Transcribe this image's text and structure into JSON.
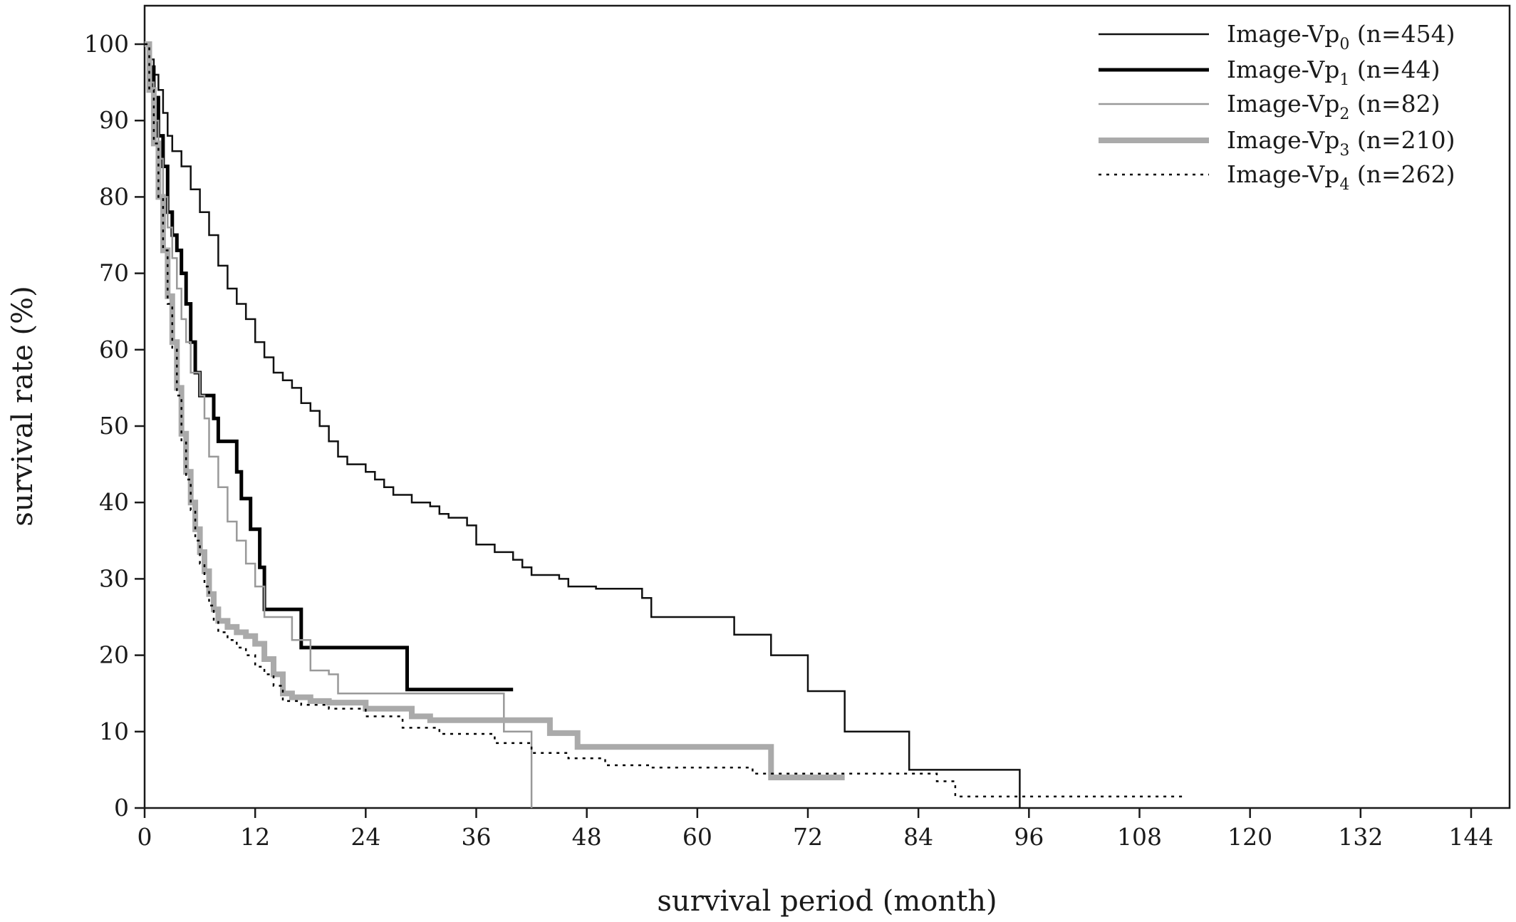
{
  "chart_data": {
    "type": "line",
    "step": true,
    "title": "",
    "xlabel": "survival period (month)",
    "ylabel": "survival rate (%)",
    "xlim": [
      0,
      150
    ],
    "ylim": [
      0,
      105
    ],
    "xticks": [
      0,
      12,
      24,
      36,
      48,
      60,
      72,
      84,
      96,
      108,
      120,
      132,
      144
    ],
    "yticks": [
      0,
      10,
      20,
      30,
      40,
      50,
      60,
      70,
      80,
      90,
      100
    ],
    "grid": false,
    "legend_position": "top-right",
    "series": [
      {
        "name_prefix": "Image-Vp",
        "name_sub": "0",
        "name_suffix": " (n=454)",
        "color": "#111111",
        "line_width": 2.5,
        "dash": "",
        "points": [
          [
            0,
            100
          ],
          [
            0.5,
            98
          ],
          [
            1,
            96
          ],
          [
            1.5,
            94
          ],
          [
            2,
            91
          ],
          [
            2.5,
            88
          ],
          [
            3,
            86
          ],
          [
            4,
            84
          ],
          [
            5,
            81
          ],
          [
            6,
            78
          ],
          [
            7,
            75
          ],
          [
            8,
            71
          ],
          [
            9,
            68
          ],
          [
            10,
            66
          ],
          [
            11,
            64
          ],
          [
            12,
            61
          ],
          [
            13,
            59
          ],
          [
            14,
            57
          ],
          [
            15,
            56
          ],
          [
            16,
            55
          ],
          [
            17,
            53
          ],
          [
            18,
            52
          ],
          [
            19,
            50
          ],
          [
            20,
            48
          ],
          [
            21,
            46
          ],
          [
            22,
            45
          ],
          [
            24,
            44
          ],
          [
            25,
            43
          ],
          [
            26,
            42
          ],
          [
            27,
            41
          ],
          [
            29,
            40
          ],
          [
            31,
            39.5
          ],
          [
            32,
            38.5
          ],
          [
            33,
            38
          ],
          [
            35,
            37
          ],
          [
            36,
            34.5
          ],
          [
            38,
            33.5
          ],
          [
            40,
            32.5
          ],
          [
            41,
            31.5
          ],
          [
            42,
            30.5
          ],
          [
            45,
            30
          ],
          [
            46,
            29
          ],
          [
            49,
            28.7
          ],
          [
            54,
            27.5
          ],
          [
            55,
            25
          ],
          [
            64,
            22.7
          ],
          [
            68,
            20
          ],
          [
            72,
            15.3
          ],
          [
            76,
            10
          ],
          [
            83,
            5
          ],
          [
            95,
            0
          ]
        ]
      },
      {
        "name_prefix": "Image-Vp",
        "name_sub": "1",
        "name_suffix": " (n=44)",
        "color": "#000000",
        "line_width": 5,
        "dash": "",
        "points": [
          [
            0,
            100
          ],
          [
            0.5,
            97
          ],
          [
            1,
            93
          ],
          [
            1.5,
            88
          ],
          [
            2,
            84
          ],
          [
            2.5,
            78
          ],
          [
            3,
            75
          ],
          [
            3.5,
            73
          ],
          [
            4,
            70
          ],
          [
            4.5,
            66
          ],
          [
            5,
            61
          ],
          [
            5.5,
            57
          ],
          [
            6,
            54
          ],
          [
            7,
            54
          ],
          [
            7.5,
            51
          ],
          [
            8,
            48
          ],
          [
            10,
            44
          ],
          [
            10.5,
            40.5
          ],
          [
            11.5,
            36.5
          ],
          [
            12.5,
            31.5
          ],
          [
            13,
            26
          ],
          [
            17,
            21
          ],
          [
            28.5,
            15.5
          ],
          [
            40,
            15.5
          ]
        ]
      },
      {
        "name_prefix": "Image-Vp",
        "name_sub": "2",
        "name_suffix": " (n=82)",
        "color": "#999999",
        "line_width": 2.5,
        "dash": "",
        "points": [
          [
            0,
            100
          ],
          [
            0.5,
            95
          ],
          [
            1,
            90
          ],
          [
            1.5,
            85
          ],
          [
            2,
            80
          ],
          [
            2.5,
            76
          ],
          [
            3,
            72
          ],
          [
            3.5,
            68
          ],
          [
            4,
            64
          ],
          [
            4.5,
            61
          ],
          [
            5,
            57
          ],
          [
            6,
            54
          ],
          [
            6.5,
            51
          ],
          [
            7,
            46
          ],
          [
            8,
            42
          ],
          [
            9,
            37.5
          ],
          [
            10,
            35
          ],
          [
            11,
            32
          ],
          [
            12,
            29
          ],
          [
            13,
            25
          ],
          [
            16,
            22
          ],
          [
            18,
            18
          ],
          [
            20,
            17.5
          ],
          [
            21,
            15
          ],
          [
            39,
            10
          ],
          [
            42,
            0
          ]
        ]
      },
      {
        "name_prefix": "Image-Vp",
        "name_sub": "3",
        "name_suffix": " (n=210)",
        "color": "#aaaaaa",
        "line_width": 8,
        "dash": "",
        "points": [
          [
            0,
            100
          ],
          [
            0.5,
            94
          ],
          [
            1,
            87
          ],
          [
            1.5,
            80
          ],
          [
            2,
            73
          ],
          [
            2.5,
            67
          ],
          [
            3,
            61
          ],
          [
            3.5,
            55
          ],
          [
            4,
            49
          ],
          [
            4.5,
            44
          ],
          [
            5,
            40
          ],
          [
            5.5,
            36.5
          ],
          [
            6,
            33.5
          ],
          [
            6.5,
            31
          ],
          [
            7,
            28
          ],
          [
            7.5,
            26
          ],
          [
            8,
            24.5
          ],
          [
            9,
            23.7
          ],
          [
            10,
            23
          ],
          [
            11,
            22.5
          ],
          [
            12,
            21.5
          ],
          [
            13,
            19.5
          ],
          [
            14,
            17.5
          ],
          [
            15,
            15
          ],
          [
            16,
            14.5
          ],
          [
            18,
            14
          ],
          [
            20,
            13.8
          ],
          [
            24,
            13
          ],
          [
            29,
            12
          ],
          [
            31,
            11.5
          ],
          [
            44,
            9.8
          ],
          [
            47,
            8
          ],
          [
            68,
            4
          ],
          [
            76,
            4
          ]
        ]
      },
      {
        "name_prefix": "Image-Vp",
        "name_sub": "4",
        "name_suffix": " (n=262)",
        "color": "#000000",
        "line_width": 2.5,
        "dash": "4 7",
        "points": [
          [
            0,
            100
          ],
          [
            0.5,
            94
          ],
          [
            1,
            87
          ],
          [
            1.5,
            80
          ],
          [
            2,
            73
          ],
          [
            2.5,
            66
          ],
          [
            3,
            60
          ],
          [
            3.5,
            54
          ],
          [
            4,
            48
          ],
          [
            4.5,
            43
          ],
          [
            5,
            39
          ],
          [
            5.5,
            35
          ],
          [
            6,
            32
          ],
          [
            6.5,
            29
          ],
          [
            7,
            26.5
          ],
          [
            7.5,
            24.5
          ],
          [
            8,
            23
          ],
          [
            9,
            22
          ],
          [
            10,
            21
          ],
          [
            11,
            20
          ],
          [
            12,
            18.5
          ],
          [
            13,
            17.5
          ],
          [
            14,
            16
          ],
          [
            15,
            14
          ],
          [
            17,
            13.5
          ],
          [
            20,
            13
          ],
          [
            24,
            12
          ],
          [
            28,
            10.5
          ],
          [
            32,
            9.7
          ],
          [
            38,
            8.5
          ],
          [
            42,
            7.2
          ],
          [
            46,
            6.5
          ],
          [
            50,
            5.6
          ],
          [
            55,
            5.3
          ],
          [
            66,
            4.5
          ],
          [
            69,
            4.5
          ],
          [
            86,
            3.5
          ],
          [
            88,
            1.5
          ],
          [
            113,
            1.5
          ]
        ]
      }
    ]
  }
}
